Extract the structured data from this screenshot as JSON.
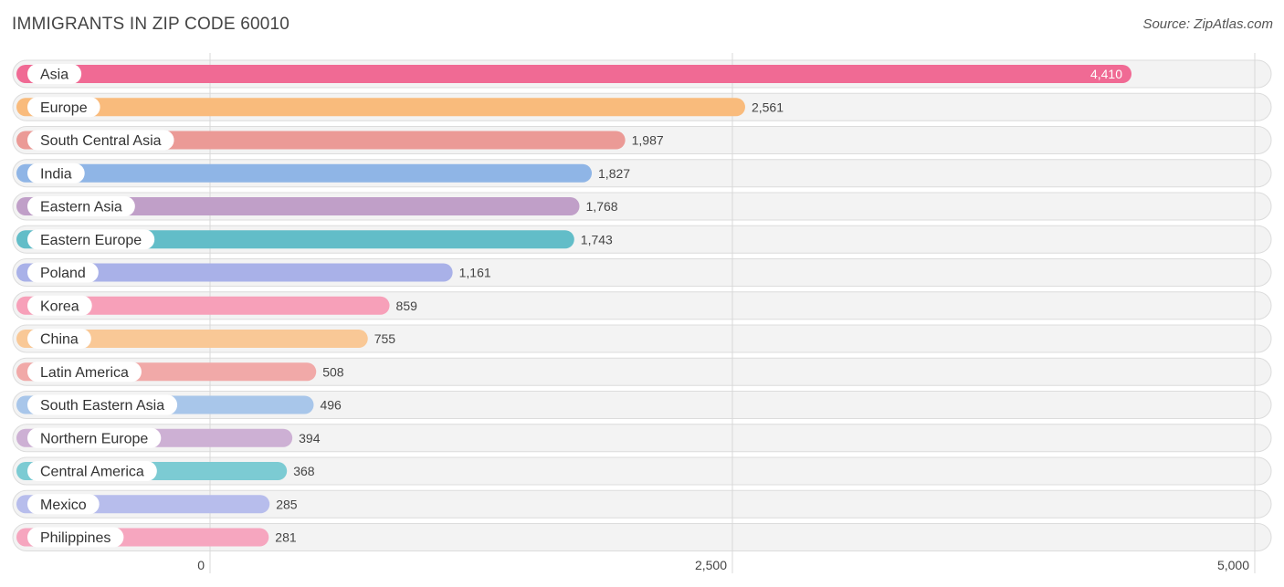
{
  "header": {
    "title": "IMMIGRANTS IN ZIP CODE 60010",
    "source": "Source: ZipAtlas.com"
  },
  "chart_data": {
    "type": "bar",
    "orientation": "horizontal",
    "title": "IMMIGRANTS IN ZIP CODE 60010",
    "categories": [
      "Asia",
      "Europe",
      "South Central Asia",
      "India",
      "Eastern Asia",
      "Eastern Europe",
      "Poland",
      "Korea",
      "China",
      "Latin America",
      "South Eastern Asia",
      "Northern Europe",
      "Central America",
      "Mexico",
      "Philippines"
    ],
    "values": [
      4410,
      2561,
      1987,
      1827,
      1768,
      1743,
      1161,
      859,
      755,
      508,
      496,
      394,
      368,
      285,
      281
    ],
    "value_labels": [
      "4,410",
      "2,561",
      "1,987",
      "1,827",
      "1,768",
      "1,743",
      "1,161",
      "859",
      "755",
      "508",
      "496",
      "394",
      "368",
      "285",
      "281"
    ],
    "colors": [
      "#f06a94",
      "#f9bb7c",
      "#eb9a96",
      "#8fb5e6",
      "#c09fc8",
      "#62bdc8",
      "#a9b1e8",
      "#f7a0b9",
      "#f9c896",
      "#f1a9a8",
      "#a8c6ea",
      "#cdb0d4",
      "#7ccbd3",
      "#b7bdec",
      "#f6a6bf"
    ],
    "xlim": [
      0,
      5000
    ],
    "xticks": [
      0,
      2500,
      5000
    ],
    "xtick_labels": [
      "0",
      "2,500",
      "5,000"
    ],
    "grid": true
  }
}
